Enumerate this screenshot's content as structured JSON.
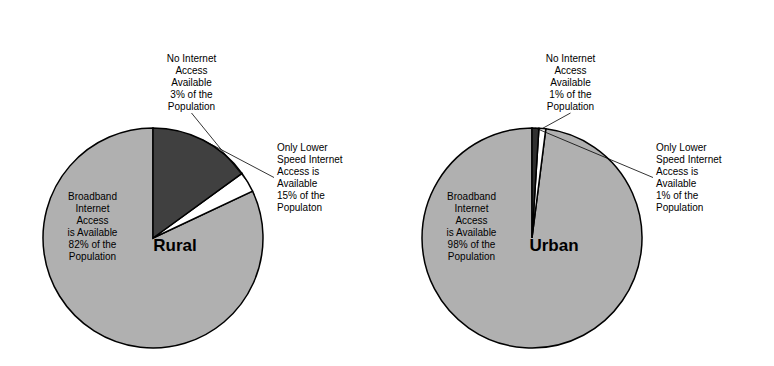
{
  "chart_data": [
    {
      "type": "pie",
      "title": "Rural",
      "values": [
        82,
        3,
        15
      ],
      "colors": [
        "#b0b0b0",
        "#ffffff",
        "#404040"
      ],
      "annotations": [
        "Broadband\nInternet\nAccess\nis Available\n82% of the\nPopulation",
        "No Internet\nAccess\nAvailable\n3% of the\nPopulation",
        "Only Lower\nSpeed Internet\nAccess is\nAvailable\n15% of the\nPopulaton"
      ]
    },
    {
      "type": "pie",
      "title": "Urban",
      "values": [
        98,
        1,
        1
      ],
      "colors": [
        "#b0b0b0",
        "#ffffff",
        "#303030"
      ],
      "annotations": [
        "Broadband\nInternet\nAccess\nis Available\n98% of the\nPopulation",
        "No Internet\nAccess\nAvailable\n1% of the\nPopulation",
        "Only Lower\nSpeed Internet\nAccess is\nAvailable\n1% of the\nPopulation"
      ]
    }
  ]
}
